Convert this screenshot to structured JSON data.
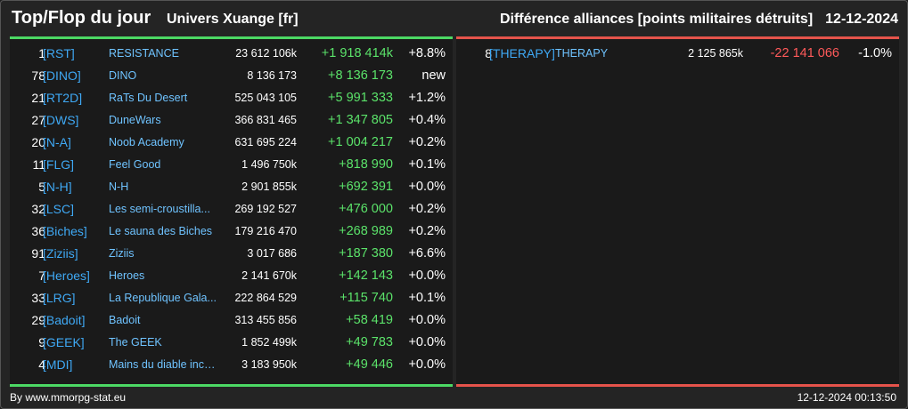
{
  "header": {
    "title": "Top/Flop du jour",
    "universe": "Univers Xuange [fr]",
    "ranking_label": "Différence alliances [points militaires détruits]",
    "date": "12-12-2024"
  },
  "colors": {
    "top_accent": "#4cd964",
    "flop_accent": "#e5534b",
    "tag": "#3fa9f5",
    "positive": "#5be36a",
    "negative": "#ff5a5a"
  },
  "top": [
    {
      "rank": "1",
      "tag": "[RST]",
      "name": "RESISTANCE",
      "points": "23 612 106k",
      "diff": "+1 918 414k",
      "pct": "+8.8%"
    },
    {
      "rank": "78",
      "tag": "[DINO]",
      "name": "DINO",
      "points": "8 136 173",
      "diff": "+8 136 173",
      "pct": "new"
    },
    {
      "rank": "21",
      "tag": "[RT2D]",
      "name": "RaTs Du Desert",
      "points": "525 043 105",
      "diff": "+5 991 333",
      "pct": "+1.2%"
    },
    {
      "rank": "27",
      "tag": "[DWS]",
      "name": "DuneWars",
      "points": "366 831 465",
      "diff": "+1 347 805",
      "pct": "+0.4%"
    },
    {
      "rank": "20",
      "tag": "[N-A]",
      "name": "Noob Academy",
      "points": "631 695 224",
      "diff": "+1 004 217",
      "pct": "+0.2%"
    },
    {
      "rank": "11",
      "tag": "[FLG]",
      "name": "Feel Good",
      "points": "1 496 750k",
      "diff": "+818 990",
      "pct": "+0.1%"
    },
    {
      "rank": "5",
      "tag": "[N-H]",
      "name": "N-H",
      "points": "2 901 855k",
      "diff": "+692 391",
      "pct": "+0.0%"
    },
    {
      "rank": "32",
      "tag": "[LSC]",
      "name": "Les semi-croustilla...",
      "points": "269 192 527",
      "diff": "+476 000",
      "pct": "+0.2%"
    },
    {
      "rank": "36",
      "tag": "[Biches]",
      "name": "Le sauna des Biches",
      "points": "179 216 470",
      "diff": "+268 989",
      "pct": "+0.2%"
    },
    {
      "rank": "91",
      "tag": "[Ziziis]",
      "name": "Ziziis",
      "points": "3 017 686",
      "diff": "+187 380",
      "pct": "+6.6%"
    },
    {
      "rank": "7",
      "tag": "[Heroes]",
      "name": "Heroes",
      "points": "2 141 670k",
      "diff": "+142 143",
      "pct": "+0.0%"
    },
    {
      "rank": "33",
      "tag": "[LRG]",
      "name": "La Republique Gala...",
      "points": "222 864 529",
      "diff": "+115 740",
      "pct": "+0.1%"
    },
    {
      "rank": "29",
      "tag": "[Badoit]",
      "name": "Badoit",
      "points": "313 455 856",
      "diff": "+58 419",
      "pct": "+0.0%"
    },
    {
      "rank": "9",
      "tag": "[GEEK]",
      "name": "The GEEK",
      "points": "1 852 499k",
      "diff": "+49 783",
      "pct": "+0.0%"
    },
    {
      "rank": "4",
      "tag": "[MDI]",
      "name": "Mains du diable inco...",
      "points": "3 183 950k",
      "diff": "+49 446",
      "pct": "+0.0%"
    }
  ],
  "flop": [
    {
      "rank": "8",
      "tag": "[THERAPY]",
      "name": "THERAPY",
      "points": "2 125 865k",
      "diff": "-22 141 066",
      "pct": "-1.0%"
    }
  ],
  "footer": {
    "source": "By www.mmorpg-stat.eu",
    "timestamp": "12-12-2024 00:13:50"
  }
}
